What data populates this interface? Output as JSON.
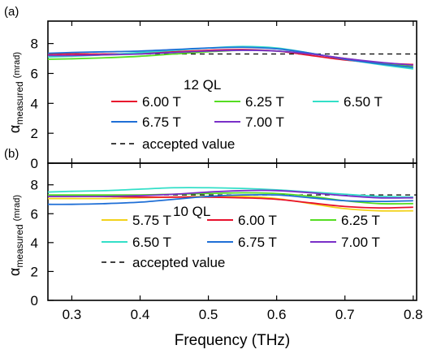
{
  "chart_data": [
    {
      "type": "line",
      "panel_label": "(a)",
      "annotation": "12 QL",
      "xlabel": "",
      "ylabel_main": "α",
      "ylabel_sub": "measured",
      "ylabel_unit": "(mrad)",
      "xlim": [
        0.265,
        0.805
      ],
      "ylim": [
        0,
        9.5
      ],
      "yticks": [
        "0",
        "2",
        "4",
        "6",
        "8"
      ],
      "xticks": [],
      "reference": {
        "name": "accepted value",
        "value": 7.3
      },
      "series": [
        {
          "name": "6.00 T",
          "color": "#e8112d",
          "x": [
            0.265,
            0.3,
            0.35,
            0.4,
            0.45,
            0.5,
            0.55,
            0.6,
            0.65,
            0.7,
            0.75,
            0.8
          ],
          "y": [
            7.3,
            7.3,
            7.3,
            7.35,
            7.45,
            7.55,
            7.6,
            7.5,
            7.2,
            6.9,
            6.7,
            6.6
          ]
        },
        {
          "name": "6.25 T",
          "color": "#55dd22",
          "x": [
            0.265,
            0.3,
            0.35,
            0.4,
            0.45,
            0.5,
            0.55,
            0.6,
            0.65,
            0.7,
            0.75,
            0.8
          ],
          "y": [
            6.95,
            6.98,
            7.05,
            7.15,
            7.3,
            7.45,
            7.55,
            7.5,
            7.3,
            7.0,
            6.7,
            6.45
          ]
        },
        {
          "name": "6.50 T",
          "color": "#33dfc8",
          "x": [
            0.265,
            0.3,
            0.35,
            0.4,
            0.45,
            0.5,
            0.55,
            0.6,
            0.65,
            0.7,
            0.75,
            0.8
          ],
          "y": [
            7.1,
            7.15,
            7.25,
            7.4,
            7.55,
            7.7,
            7.8,
            7.7,
            7.35,
            6.95,
            6.6,
            6.3
          ]
        },
        {
          "name": "6.75 T",
          "color": "#1f6fd6",
          "x": [
            0.265,
            0.3,
            0.35,
            0.4,
            0.45,
            0.5,
            0.55,
            0.6,
            0.65,
            0.7,
            0.75,
            0.8
          ],
          "y": [
            7.35,
            7.4,
            7.45,
            7.5,
            7.6,
            7.7,
            7.75,
            7.65,
            7.35,
            6.95,
            6.65,
            6.4
          ]
        },
        {
          "name": "7.00 T",
          "color": "#7a2fc8",
          "x": [
            0.265,
            0.3,
            0.35,
            0.4,
            0.45,
            0.5,
            0.55,
            0.6,
            0.65,
            0.7,
            0.75,
            0.8
          ],
          "y": [
            7.2,
            7.2,
            7.25,
            7.3,
            7.4,
            7.5,
            7.55,
            7.5,
            7.3,
            7.0,
            6.75,
            6.55
          ]
        }
      ],
      "legend": [
        "6.00 T",
        "6.25 T",
        "6.50 T",
        "6.75 T",
        "7.00 T",
        "accepted value"
      ]
    },
    {
      "type": "line",
      "panel_label": "(b)",
      "annotation": "10 QL",
      "xlabel": "Frequency (THz)",
      "ylabel_main": "α",
      "ylabel_sub": "measured",
      "ylabel_unit": "(mrad)",
      "xlim": [
        0.265,
        0.805
      ],
      "ylim": [
        0,
        9.5
      ],
      "yticks": [
        "0",
        "2",
        "4",
        "6",
        "8"
      ],
      "xticks": [
        "0.3",
        "0.4",
        "0.5",
        "0.6",
        "0.7",
        "0.8"
      ],
      "reference": {
        "name": "accepted value",
        "value": 7.3
      },
      "series": [
        {
          "name": "5.75 T",
          "color": "#f2d21b",
          "x": [
            0.265,
            0.3,
            0.35,
            0.4,
            0.45,
            0.5,
            0.55,
            0.6,
            0.65,
            0.7,
            0.75,
            0.8
          ],
          "y": [
            7.05,
            7.05,
            7.05,
            7.1,
            7.15,
            7.2,
            7.2,
            7.05,
            6.7,
            6.35,
            6.2,
            6.2
          ]
        },
        {
          "name": "6.00 T",
          "color": "#e8112d",
          "x": [
            0.265,
            0.3,
            0.35,
            0.4,
            0.45,
            0.5,
            0.55,
            0.6,
            0.65,
            0.7,
            0.75,
            0.8
          ],
          "y": [
            7.25,
            7.25,
            7.2,
            7.15,
            7.15,
            7.15,
            7.1,
            7.0,
            6.75,
            6.5,
            6.4,
            6.45
          ]
        },
        {
          "name": "6.25 T",
          "color": "#55dd22",
          "x": [
            0.265,
            0.3,
            0.35,
            0.4,
            0.45,
            0.5,
            0.55,
            0.6,
            0.65,
            0.7,
            0.75,
            0.8
          ],
          "y": [
            7.3,
            7.3,
            7.3,
            7.3,
            7.35,
            7.4,
            7.45,
            7.4,
            7.2,
            6.9,
            6.7,
            6.7
          ]
        },
        {
          "name": "6.50 T",
          "color": "#33dfc8",
          "x": [
            0.265,
            0.3,
            0.35,
            0.4,
            0.45,
            0.5,
            0.55,
            0.6,
            0.65,
            0.7,
            0.75,
            0.8
          ],
          "y": [
            7.5,
            7.55,
            7.6,
            7.7,
            7.8,
            7.8,
            7.75,
            7.65,
            7.5,
            7.35,
            7.2,
            7.15
          ]
        },
        {
          "name": "6.75 T",
          "color": "#1f6fd6",
          "x": [
            0.265,
            0.3,
            0.35,
            0.4,
            0.45,
            0.5,
            0.55,
            0.6,
            0.65,
            0.7,
            0.75,
            0.8
          ],
          "y": [
            6.65,
            6.65,
            6.7,
            6.8,
            7.0,
            7.2,
            7.3,
            7.3,
            7.1,
            6.9,
            6.85,
            6.9
          ]
        },
        {
          "name": "7.00 T",
          "color": "#7a2fc8",
          "x": [
            0.265,
            0.3,
            0.35,
            0.4,
            0.45,
            0.5,
            0.55,
            0.6,
            0.65,
            0.7,
            0.75,
            0.8
          ],
          "y": [
            7.2,
            7.2,
            7.2,
            7.25,
            7.35,
            7.5,
            7.6,
            7.6,
            7.45,
            7.25,
            7.1,
            7.1
          ]
        }
      ],
      "legend": [
        "5.75 T",
        "6.00 T",
        "6.25 T",
        "6.50 T",
        "6.75 T",
        "7.00 T",
        "accepted value"
      ]
    }
  ]
}
